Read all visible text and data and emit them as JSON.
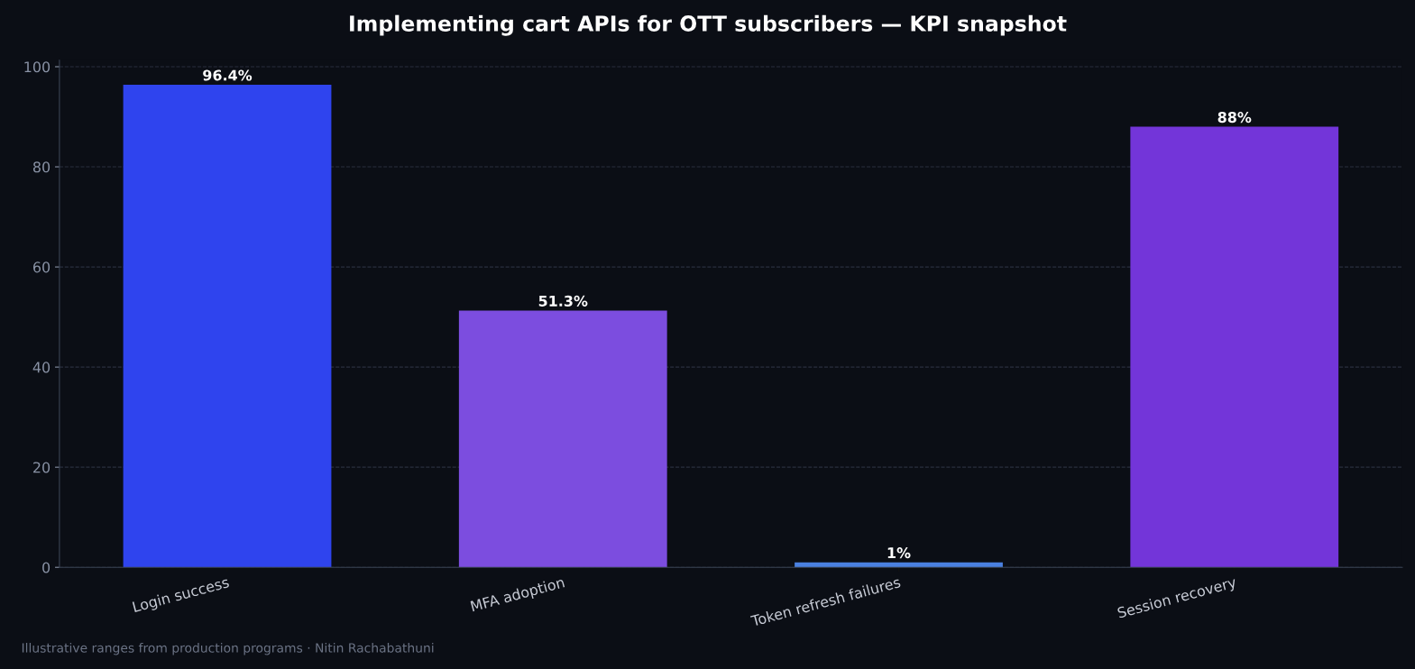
{
  "chart_data": {
    "type": "bar",
    "title": "Implementing cart APIs for OTT subscribers — KPI snapshot",
    "categories": [
      "Login success",
      "MFA adoption",
      "Token refresh failures",
      "Session recovery"
    ],
    "values": [
      96.4,
      51.3,
      1,
      88
    ],
    "colors": [
      "#2f44ee",
      "#7c4ddf",
      "#4a80e0",
      "#7335d9"
    ],
    "value_labels": [
      "96.4%",
      "51.3%",
      "1%",
      "88%"
    ],
    "ylim": [
      0,
      101.3
    ],
    "yticks": [
      0,
      20,
      40,
      60,
      80,
      100
    ],
    "grid": "y",
    "legend": false,
    "annotations": [
      "Illustrative ranges from production programs · Nitin Rachabathuni"
    ]
  }
}
